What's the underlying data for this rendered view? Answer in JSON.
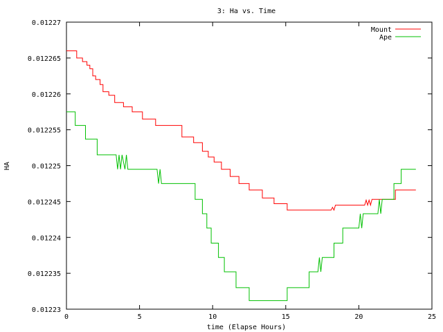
{
  "chart_data": {
    "type": "line",
    "title": "3: Ha vs. Time",
    "xlabel": "time (Elapse Hours)",
    "ylabel": "HA",
    "xlim": [
      0,
      25
    ],
    "ylim": [
      0.01223,
      0.01227
    ],
    "xticks": [
      0,
      5,
      10,
      15,
      20,
      25
    ],
    "xtick_labels": [
      "0",
      "5",
      "10",
      "15",
      "20",
      "25"
    ],
    "yticks": [
      0.01223,
      0.012235,
      0.01224,
      0.012245,
      0.01225,
      0.012255,
      0.01226,
      0.012265,
      0.01227
    ],
    "ytick_labels": [
      "0.01223",
      "0.012235",
      "0.01224",
      "0.012245",
      "0.01225",
      "0.012255",
      "0.01226",
      "0.012265",
      "0.01227"
    ],
    "grid": false,
    "legend_position": "top-right",
    "series": [
      {
        "name": "Mount",
        "color": "#ff0000",
        "points": [
          [
            0.0,
            0.012266
          ],
          [
            0.7,
            0.012266
          ],
          [
            0.7,
            0.012265
          ],
          [
            1.1,
            0.012265
          ],
          [
            1.1,
            0.0122645
          ],
          [
            1.4,
            0.0122645
          ],
          [
            1.4,
            0.012264
          ],
          [
            1.6,
            0.012264
          ],
          [
            1.6,
            0.0122635
          ],
          [
            1.8,
            0.0122635
          ],
          [
            1.8,
            0.0122625
          ],
          [
            2.0,
            0.0122625
          ],
          [
            2.0,
            0.012262
          ],
          [
            2.3,
            0.012262
          ],
          [
            2.3,
            0.0122613
          ],
          [
            2.5,
            0.0122613
          ],
          [
            2.5,
            0.0122603
          ],
          [
            2.9,
            0.0122603
          ],
          [
            2.9,
            0.0122598
          ],
          [
            3.3,
            0.0122598
          ],
          [
            3.3,
            0.0122588
          ],
          [
            3.9,
            0.0122588
          ],
          [
            3.9,
            0.0122582
          ],
          [
            4.5,
            0.0122582
          ],
          [
            4.5,
            0.0122575
          ],
          [
            5.2,
            0.0122575
          ],
          [
            5.2,
            0.0122565
          ],
          [
            6.1,
            0.0122565
          ],
          [
            6.1,
            0.0122556
          ],
          [
            7.9,
            0.0122556
          ],
          [
            7.9,
            0.012254
          ],
          [
            8.7,
            0.012254
          ],
          [
            8.7,
            0.0122532
          ],
          [
            9.3,
            0.0122532
          ],
          [
            9.3,
            0.012252
          ],
          [
            9.7,
            0.012252
          ],
          [
            9.7,
            0.0122512
          ],
          [
            10.1,
            0.0122512
          ],
          [
            10.1,
            0.0122505
          ],
          [
            10.6,
            0.0122505
          ],
          [
            10.6,
            0.0122495
          ],
          [
            11.2,
            0.0122495
          ],
          [
            11.2,
            0.0122485
          ],
          [
            11.8,
            0.0122485
          ],
          [
            11.8,
            0.0122475
          ],
          [
            12.5,
            0.0122475
          ],
          [
            12.5,
            0.0122466
          ],
          [
            13.4,
            0.0122466
          ],
          [
            13.4,
            0.0122455
          ],
          [
            14.2,
            0.0122455
          ],
          [
            14.2,
            0.0122447
          ],
          [
            15.1,
            0.0122447
          ],
          [
            15.1,
            0.0122438
          ],
          [
            18.1,
            0.0122438
          ],
          [
            18.2,
            0.0122442
          ],
          [
            18.3,
            0.0122438
          ],
          [
            18.4,
            0.0122445
          ],
          [
            20.4,
            0.0122445
          ],
          [
            20.5,
            0.0122452
          ],
          [
            20.6,
            0.0122445
          ],
          [
            20.7,
            0.0122452
          ],
          [
            20.8,
            0.0122445
          ],
          [
            20.9,
            0.0122453
          ],
          [
            22.5,
            0.0122453
          ],
          [
            22.5,
            0.0122466
          ],
          [
            23.9,
            0.0122466
          ]
        ]
      },
      {
        "name": "Ape",
        "color": "#00c000",
        "points": [
          [
            0.0,
            0.0122575
          ],
          [
            0.6,
            0.0122575
          ],
          [
            0.6,
            0.0122556
          ],
          [
            1.3,
            0.0122556
          ],
          [
            1.3,
            0.0122537
          ],
          [
            2.1,
            0.0122537
          ],
          [
            2.1,
            0.0122515
          ],
          [
            3.4,
            0.0122515
          ],
          [
            3.5,
            0.0122495
          ],
          [
            3.6,
            0.0122515
          ],
          [
            3.7,
            0.0122495
          ],
          [
            3.8,
            0.0122515
          ],
          [
            4.0,
            0.0122495
          ],
          [
            4.1,
            0.0122515
          ],
          [
            4.2,
            0.0122495
          ],
          [
            6.2,
            0.0122495
          ],
          [
            6.3,
            0.0122475
          ],
          [
            6.4,
            0.0122495
          ],
          [
            6.5,
            0.0122475
          ],
          [
            8.8,
            0.0122475
          ],
          [
            8.8,
            0.0122453
          ],
          [
            9.3,
            0.0122453
          ],
          [
            9.3,
            0.0122433
          ],
          [
            9.6,
            0.0122433
          ],
          [
            9.6,
            0.0122413
          ],
          [
            9.9,
            0.0122413
          ],
          [
            9.9,
            0.0122392
          ],
          [
            10.4,
            0.0122392
          ],
          [
            10.4,
            0.0122372
          ],
          [
            10.8,
            0.0122372
          ],
          [
            10.8,
            0.0122352
          ],
          [
            11.6,
            0.0122352
          ],
          [
            11.6,
            0.012233
          ],
          [
            12.5,
            0.012233
          ],
          [
            12.5,
            0.0122312
          ],
          [
            15.1,
            0.0122312
          ],
          [
            15.1,
            0.012233
          ],
          [
            16.6,
            0.012233
          ],
          [
            16.6,
            0.0122352
          ],
          [
            17.2,
            0.0122352
          ],
          [
            17.3,
            0.0122372
          ],
          [
            17.4,
            0.0122352
          ],
          [
            17.5,
            0.0122372
          ],
          [
            18.3,
            0.0122372
          ],
          [
            18.3,
            0.0122392
          ],
          [
            18.9,
            0.0122392
          ],
          [
            18.9,
            0.0122413
          ],
          [
            20.0,
            0.0122413
          ],
          [
            20.1,
            0.0122433
          ],
          [
            20.2,
            0.0122413
          ],
          [
            20.3,
            0.0122433
          ],
          [
            21.3,
            0.0122433
          ],
          [
            21.4,
            0.0122453
          ],
          [
            21.5,
            0.0122433
          ],
          [
            21.6,
            0.0122453
          ],
          [
            22.4,
            0.0122453
          ],
          [
            22.4,
            0.0122475
          ],
          [
            22.9,
            0.0122475
          ],
          [
            22.9,
            0.0122495
          ],
          [
            23.9,
            0.0122495
          ]
        ]
      }
    ]
  }
}
